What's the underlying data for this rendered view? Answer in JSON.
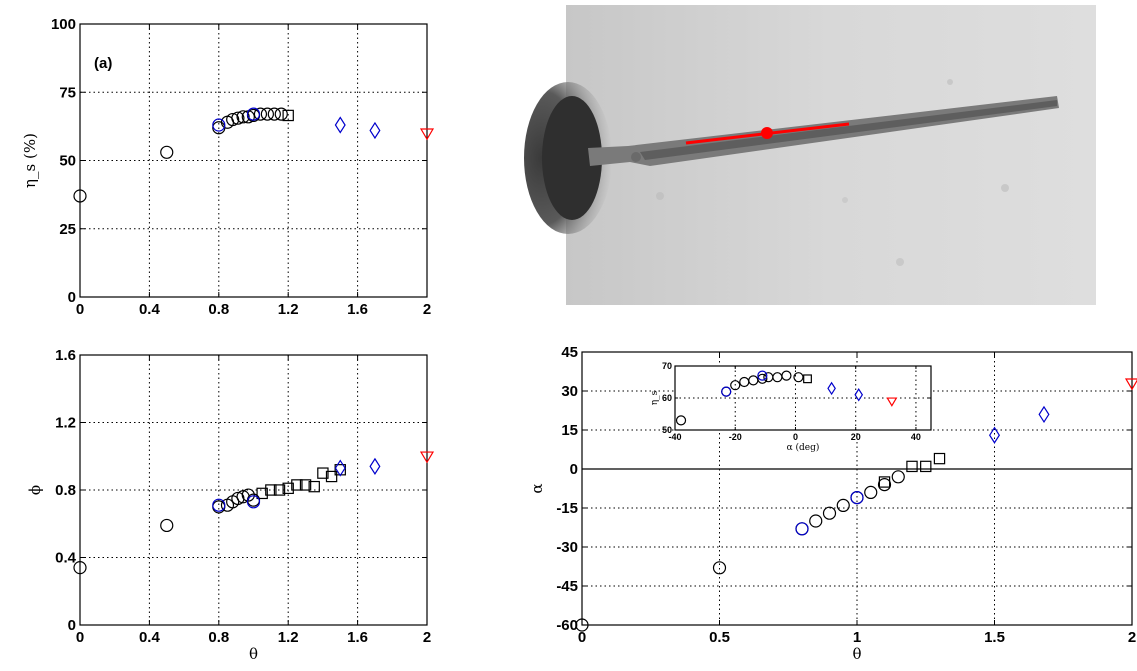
{
  "chart_data": [
    {
      "id": "a",
      "type": "scatter",
      "annotation": "(a)",
      "xlabel": "",
      "ylabel": "η_s (%)",
      "xlim": [
        0,
        2
      ],
      "ylim": [
        0,
        100
      ],
      "xticks": [
        "0",
        "0.4",
        "0.8",
        "1.2",
        "1.6",
        "2"
      ],
      "yticks": [
        "0",
        "25",
        "50",
        "75",
        "100"
      ],
      "grid": true,
      "series": [
        {
          "marker": "circle",
          "color": "#000000",
          "points": [
            [
              0,
              37
            ],
            [
              0.5,
              53
            ],
            [
              0.8,
              62
            ],
            [
              0.85,
              64
            ],
            [
              0.88,
              65
            ],
            [
              0.91,
              65.5
            ],
            [
              0.94,
              66
            ],
            [
              0.97,
              66
            ],
            [
              1.0,
              66.5
            ],
            [
              1.04,
              67
            ],
            [
              1.08,
              67
            ],
            [
              1.12,
              67
            ],
            [
              1.16,
              67
            ]
          ]
        },
        {
          "marker": "square",
          "color": "#000000",
          "points": [
            [
              1.2,
              66.5
            ]
          ]
        },
        {
          "marker": "circle",
          "color": "#0000cc",
          "points": [
            [
              0.8,
              63
            ],
            [
              1.0,
              67
            ]
          ]
        },
        {
          "marker": "diamond",
          "color": "#0000cc",
          "points": [
            [
              1.5,
              63
            ],
            [
              1.7,
              61
            ]
          ]
        },
        {
          "marker": "triangle-down",
          "color": "#ff0000",
          "points": [
            [
              2.0,
              60
            ]
          ]
        }
      ]
    },
    {
      "id": "b",
      "type": "scatter",
      "xlabel": "θ",
      "ylabel": "ϕ",
      "xlim": [
        0,
        2
      ],
      "ylim": [
        0,
        1.6
      ],
      "xticks": [
        "0",
        "0.4",
        "0.8",
        "1.2",
        "1.6",
        "2"
      ],
      "yticks": [
        "0",
        "0.4",
        "0.8",
        "1.2",
        "1.6"
      ],
      "grid": true,
      "series": [
        {
          "marker": "circle",
          "color": "#000000",
          "points": [
            [
              0,
              0.34
            ],
            [
              0.5,
              0.59
            ],
            [
              0.8,
              0.7
            ],
            [
              0.85,
              0.71
            ],
            [
              0.88,
              0.73
            ],
            [
              0.91,
              0.75
            ],
            [
              0.94,
              0.76
            ],
            [
              0.97,
              0.77
            ],
            [
              1.0,
              0.74
            ]
          ]
        },
        {
          "marker": "square",
          "color": "#000000",
          "points": [
            [
              1.05,
              0.78
            ],
            [
              1.1,
              0.8
            ],
            [
              1.15,
              0.8
            ],
            [
              1.2,
              0.81
            ],
            [
              1.25,
              0.83
            ],
            [
              1.3,
              0.83
            ],
            [
              1.35,
              0.82
            ],
            [
              1.4,
              0.9
            ],
            [
              1.45,
              0.88
            ],
            [
              1.5,
              0.92
            ]
          ]
        },
        {
          "marker": "circle",
          "color": "#0000cc",
          "points": [
            [
              0.8,
              0.71
            ],
            [
              1.0,
              0.73
            ]
          ]
        },
        {
          "marker": "diamond",
          "color": "#0000cc",
          "points": [
            [
              1.5,
              0.93
            ],
            [
              1.7,
              0.94
            ]
          ]
        },
        {
          "marker": "triangle-down",
          "color": "#ff0000",
          "points": [
            [
              2.0,
              1.0
            ]
          ]
        }
      ]
    },
    {
      "id": "c",
      "type": "scatter",
      "xlabel": "θ",
      "ylabel": "α",
      "xlim": [
        0,
        2
      ],
      "ylim": [
        -60,
        45
      ],
      "xticks": [
        "0",
        "0.5",
        "1",
        "1.5",
        "2"
      ],
      "yticks": [
        "-60",
        "-45",
        "-30",
        "-15",
        "0",
        "15",
        "30",
        "45"
      ],
      "grid": true,
      "zero_line": true,
      "series": [
        {
          "marker": "circle",
          "color": "#000000",
          "points": [
            [
              0,
              -60
            ],
            [
              0.5,
              -38
            ],
            [
              0.8,
              -23
            ],
            [
              0.85,
              -20
            ],
            [
              0.9,
              -17
            ],
            [
              0.95,
              -14
            ],
            [
              1.0,
              -11
            ],
            [
              1.05,
              -9
            ],
            [
              1.1,
              -6
            ],
            [
              1.15,
              -3
            ]
          ]
        },
        {
          "marker": "square",
          "color": "#000000",
          "points": [
            [
              1.1,
              -5
            ],
            [
              1.2,
              1
            ],
            [
              1.25,
              1
            ],
            [
              1.3,
              4
            ]
          ]
        },
        {
          "marker": "circle",
          "color": "#0000cc",
          "points": [
            [
              0.8,
              -23
            ],
            [
              1.0,
              -11
            ]
          ]
        },
        {
          "marker": "diamond",
          "color": "#0000cc",
          "points": [
            [
              1.5,
              13
            ],
            [
              1.68,
              21
            ]
          ]
        },
        {
          "marker": "triangle-down",
          "color": "#ff0000",
          "points": [
            [
              2.0,
              33
            ]
          ]
        }
      ]
    },
    {
      "id": "c-inset",
      "type": "scatter",
      "xlabel": "α (deg)",
      "ylabel": "η_s",
      "xlim": [
        -40,
        45
      ],
      "ylim": [
        50,
        70
      ],
      "xticks": [
        "-40",
        "-20",
        "0",
        "20",
        "40"
      ],
      "yticks": [
        "50",
        "60",
        "70"
      ],
      "grid": true,
      "series": [
        {
          "marker": "circle",
          "color": "#000000",
          "points": [
            [
              -38,
              53
            ],
            [
              -23,
              62
            ],
            [
              -20,
              64
            ],
            [
              -17,
              65
            ],
            [
              -14,
              65.5
            ],
            [
              -11,
              66
            ],
            [
              -9,
              66.5
            ],
            [
              -6,
              66.5
            ],
            [
              -3,
              67
            ],
            [
              1,
              66.5
            ]
          ]
        },
        {
          "marker": "square",
          "color": "#000000",
          "points": [
            [
              4,
              66
            ]
          ]
        },
        {
          "marker": "circle",
          "color": "#0000cc",
          "points": [
            [
              -23,
              62
            ],
            [
              -11,
              67
            ]
          ]
        },
        {
          "marker": "diamond",
          "color": "#0000cc",
          "points": [
            [
              12,
              63
            ],
            [
              21,
              61
            ]
          ]
        },
        {
          "marker": "triangle-down",
          "color": "#ff0000",
          "points": [
            [
              32,
              59
            ]
          ]
        }
      ]
    }
  ]
}
